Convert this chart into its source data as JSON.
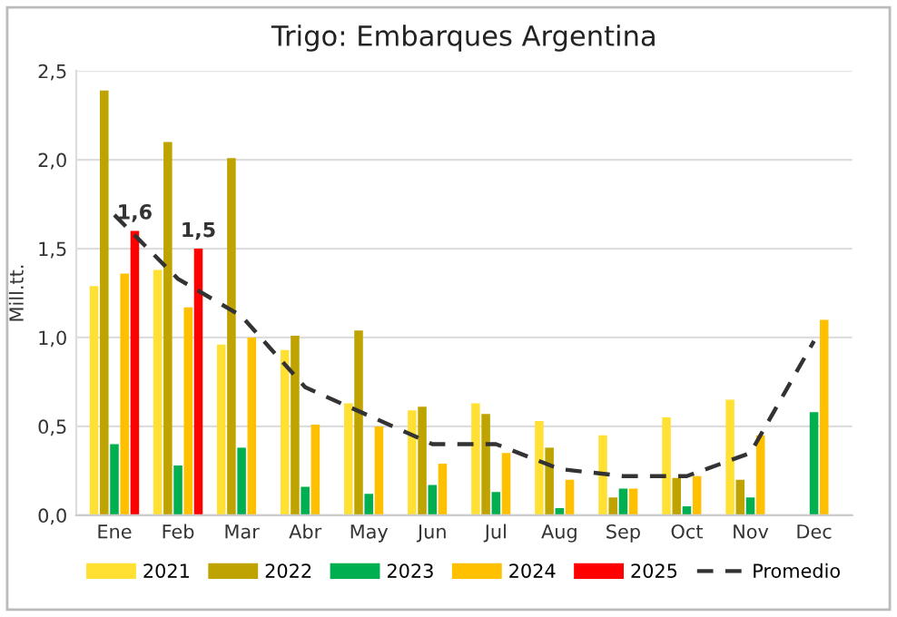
{
  "chart_data": {
    "type": "bar",
    "title": "Trigo: Embarques Argentina",
    "ylabel": "Mill.tt.",
    "categories": [
      "Ene",
      "Feb",
      "Mar",
      "Abr",
      "May",
      "Jun",
      "Jul",
      "Aug",
      "Sep",
      "Oct",
      "Nov",
      "Dec"
    ],
    "series": [
      {
        "name": "2021",
        "color": "#ffe033",
        "values": [
          1.29,
          1.38,
          0.96,
          0.93,
          0.63,
          0.59,
          0.63,
          0.53,
          0.45,
          0.55,
          0.65,
          null
        ]
      },
      {
        "name": "2022",
        "color": "#bfa300",
        "values": [
          2.39,
          2.1,
          2.01,
          1.01,
          1.04,
          0.61,
          0.57,
          0.38,
          0.1,
          0.21,
          0.2,
          null
        ]
      },
      {
        "name": "2023",
        "color": "#00b050",
        "values": [
          0.4,
          0.28,
          0.38,
          0.16,
          0.12,
          0.17,
          0.13,
          0.04,
          0.15,
          0.05,
          0.1,
          0.58
        ]
      },
      {
        "name": "2024",
        "color": "#ffc000",
        "values": [
          1.36,
          1.17,
          1.0,
          0.51,
          0.5,
          0.29,
          0.35,
          0.2,
          0.15,
          0.22,
          0.45,
          1.1
        ]
      },
      {
        "name": "2025",
        "color": "#ff0000",
        "values": [
          1.6,
          1.5,
          null,
          null,
          null,
          null,
          null,
          null,
          null,
          null,
          null,
          null
        ],
        "value_labels": [
          "1,6",
          "1,5",
          null,
          null,
          null,
          null,
          null,
          null,
          null,
          null,
          null,
          null
        ]
      },
      {
        "name": "Promedio",
        "type": "line",
        "color": "#333333",
        "line_style": "dashed",
        "marker": "none",
        "values": [
          1.69,
          1.33,
          1.12,
          0.72,
          0.56,
          0.4,
          0.4,
          0.26,
          0.22,
          0.22,
          0.35,
          0.98
        ]
      }
    ],
    "ylim": [
      0,
      2.5
    ],
    "yticks": [
      {
        "value": 0,
        "label": "0,0"
      },
      {
        "value": 0.5,
        "label": "0,5"
      },
      {
        "value": 1.0,
        "label": "1,0"
      },
      {
        "value": 1.5,
        "label": "1,5"
      },
      {
        "value": 2.0,
        "label": "2,0"
      },
      {
        "value": 2.5,
        "label": "2,5"
      }
    ],
    "grid": "y",
    "legend": "bottom"
  }
}
